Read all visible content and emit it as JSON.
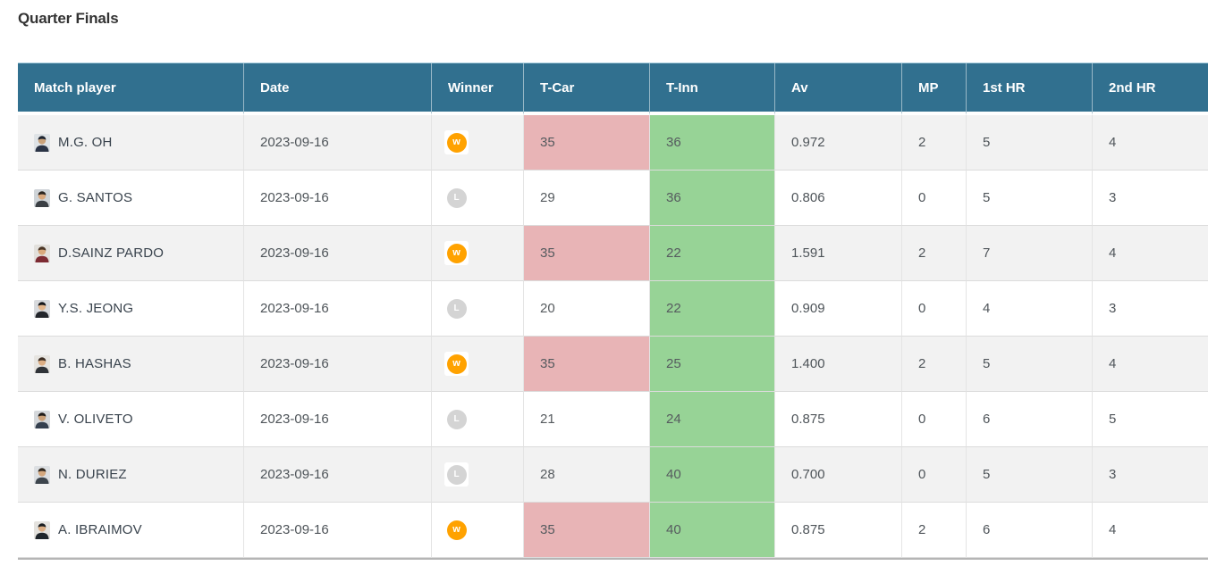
{
  "title": "Quarter Finals",
  "colors": {
    "header_bg": "#31708f",
    "pink": "#e8b4b6",
    "green": "#97d396",
    "win_orange": "#ffa200",
    "lose_gray": "#d4d4d4",
    "row_alt": "#f2f2f2",
    "text": "#4e5459"
  },
  "table": {
    "columns": [
      {
        "label": "Match player"
      },
      {
        "label": "Date"
      },
      {
        "label": "Winner"
      },
      {
        "label": "T-Car"
      },
      {
        "label": "T-Inn"
      },
      {
        "label": "Av"
      },
      {
        "label": "MP"
      },
      {
        "label": "1st HR"
      },
      {
        "label": "2nd HR"
      }
    ],
    "badges": {
      "win_label": "w",
      "lose_label": "L"
    },
    "rows": [
      {
        "player": "M.G. OH",
        "date": "2023-09-16",
        "result": "W",
        "t_car": "35",
        "t_car_hl": true,
        "t_inn": "36",
        "t_inn_hl": true,
        "av": "0.972",
        "mp": "2",
        "hr1": "5",
        "hr2": "4",
        "avatar": {
          "bg": "#dfe3e6",
          "skin": "#caa27a",
          "hair": "#1d2430",
          "shirt": "#2b3446"
        }
      },
      {
        "player": "G. SANTOS",
        "date": "2023-09-16",
        "result": "L",
        "t_car": "29",
        "t_car_hl": false,
        "t_inn": "36",
        "t_inn_hl": true,
        "av": "0.806",
        "mp": "0",
        "hr1": "5",
        "hr2": "3",
        "avatar": {
          "bg": "#cfd4d8",
          "skin": "#d8a87e",
          "hair": "#2a241f",
          "shirt": "#3a3f44"
        }
      },
      {
        "player": "D.SAINZ PARDO",
        "date": "2023-09-16",
        "result": "W",
        "t_car": "35",
        "t_car_hl": true,
        "t_inn": "22",
        "t_inn_hl": true,
        "av": "1.591",
        "mp": "2",
        "hr1": "7",
        "hr2": "4",
        "avatar": {
          "bg": "#e2e0dc",
          "skin": "#d9a97c",
          "hair": "#4a3524",
          "shirt": "#7d2b33"
        }
      },
      {
        "player": "Y.S. JEONG",
        "date": "2023-09-16",
        "result": "L",
        "t_car": "20",
        "t_car_hl": false,
        "t_inn": "22",
        "t_inn_hl": true,
        "av": "0.909",
        "mp": "0",
        "hr1": "4",
        "hr2": "3",
        "avatar": {
          "bg": "#d8dadd",
          "skin": "#e3b68c",
          "hair": "#15171a",
          "shirt": "#23262b"
        }
      },
      {
        "player": "B. HASHAS",
        "date": "2023-09-16",
        "result": "W",
        "t_car": "35",
        "t_car_hl": true,
        "t_inn": "25",
        "t_inn_hl": true,
        "av": "1.400",
        "mp": "2",
        "hr1": "5",
        "hr2": "4",
        "avatar": {
          "bg": "#e6e4e0",
          "skin": "#dcae84",
          "hair": "#3b2d22",
          "shirt": "#2f3338"
        }
      },
      {
        "player": "V. OLIVETO",
        "date": "2023-09-16",
        "result": "L",
        "t_car": "21",
        "t_car_hl": false,
        "t_inn": "24",
        "t_inn_hl": true,
        "av": "0.875",
        "mp": "0",
        "hr1": "6",
        "hr2": "5",
        "avatar": {
          "bg": "#d5d8db",
          "skin": "#caa078",
          "hair": "#1f1b18",
          "shirt": "#35404f"
        }
      },
      {
        "player": "N. DURIEZ",
        "date": "2023-09-16",
        "result": "L",
        "t_car": "28",
        "t_car_hl": false,
        "t_inn": "40",
        "t_inn_hl": true,
        "av": "0.700",
        "mp": "0",
        "hr1": "5",
        "hr2": "3",
        "avatar": {
          "bg": "#dcdfe2",
          "skin": "#d3a77e",
          "hair": "#2e261e",
          "shirt": "#3d454d"
        }
      },
      {
        "player": "A. IBRAIMOV",
        "date": "2023-09-16",
        "result": "W",
        "t_car": "35",
        "t_car_hl": true,
        "t_inn": "40",
        "t_inn_hl": true,
        "av": "0.875",
        "mp": "2",
        "hr1": "6",
        "hr2": "4",
        "avatar": {
          "bg": "#e4e2de",
          "skin": "#dcae84",
          "hair": "#191c1f",
          "shirt": "#20262c"
        }
      }
    ]
  }
}
